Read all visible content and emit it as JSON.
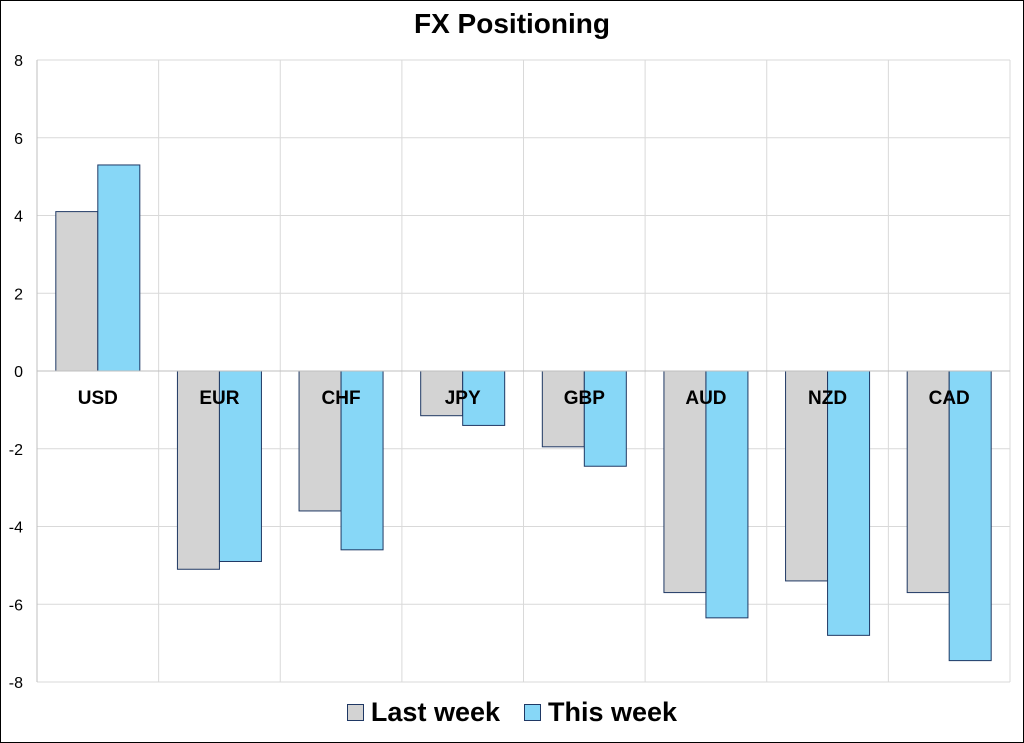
{
  "chart_data": {
    "type": "bar",
    "title": "FX Positioning",
    "xlabel": "",
    "ylabel": "",
    "categories": [
      "USD",
      "EUR",
      "CHF",
      "JPY",
      "GBP",
      "AUD",
      "NZD",
      "CAD"
    ],
    "series": [
      {
        "name": "Last week",
        "values": [
          4.1,
          -5.1,
          -3.6,
          -1.15,
          -1.95,
          -5.7,
          -5.4,
          -5.7
        ],
        "color": "#d3d3d3"
      },
      {
        "name": "This week",
        "values": [
          5.3,
          -4.9,
          -4.6,
          -1.4,
          -2.45,
          -6.35,
          -6.8,
          -7.45
        ],
        "color": "#87d7f7"
      }
    ],
    "ylim": [
      -8,
      8
    ],
    "yticks": [
      8,
      6,
      4,
      2,
      0,
      -2,
      -4,
      -6,
      -8
    ],
    "grid": true,
    "legend_position": "bottom",
    "bar_outline_color": "#1f3864",
    "grid_color": "#d9d9d9"
  }
}
